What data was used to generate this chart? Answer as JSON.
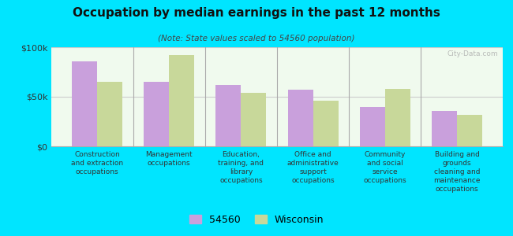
{
  "title": "Occupation by median earnings in the past 12 months",
  "subtitle": "(Note: State values scaled to 54560 population)",
  "categories": [
    "Construction\nand extraction\noccupations",
    "Management\noccupations",
    "Education,\ntraining, and\nlibrary\noccupations",
    "Office and\nadministrative\nsupport\noccupations",
    "Community\nand social\nservice\noccupations",
    "Building and\ngrounds\ncleaning and\nmaintenance\noccupations"
  ],
  "values_54560": [
    86000,
    65000,
    62000,
    57000,
    40000,
    36000
  ],
  "values_wisconsin": [
    65000,
    92000,
    54000,
    46000,
    58000,
    32000
  ],
  "color_54560": "#c9a0dc",
  "color_wisconsin": "#c8d89a",
  "background_outer": "#00e5ff",
  "background_plot": "#f0faee",
  "ylim": [
    0,
    100000
  ],
  "yticks": [
    0,
    50000,
    100000
  ],
  "ytick_labels": [
    "$0",
    "$50k",
    "$100k"
  ],
  "legend_label_1": "54560",
  "legend_label_2": "Wisconsin",
  "watermark": "City-Data.com"
}
